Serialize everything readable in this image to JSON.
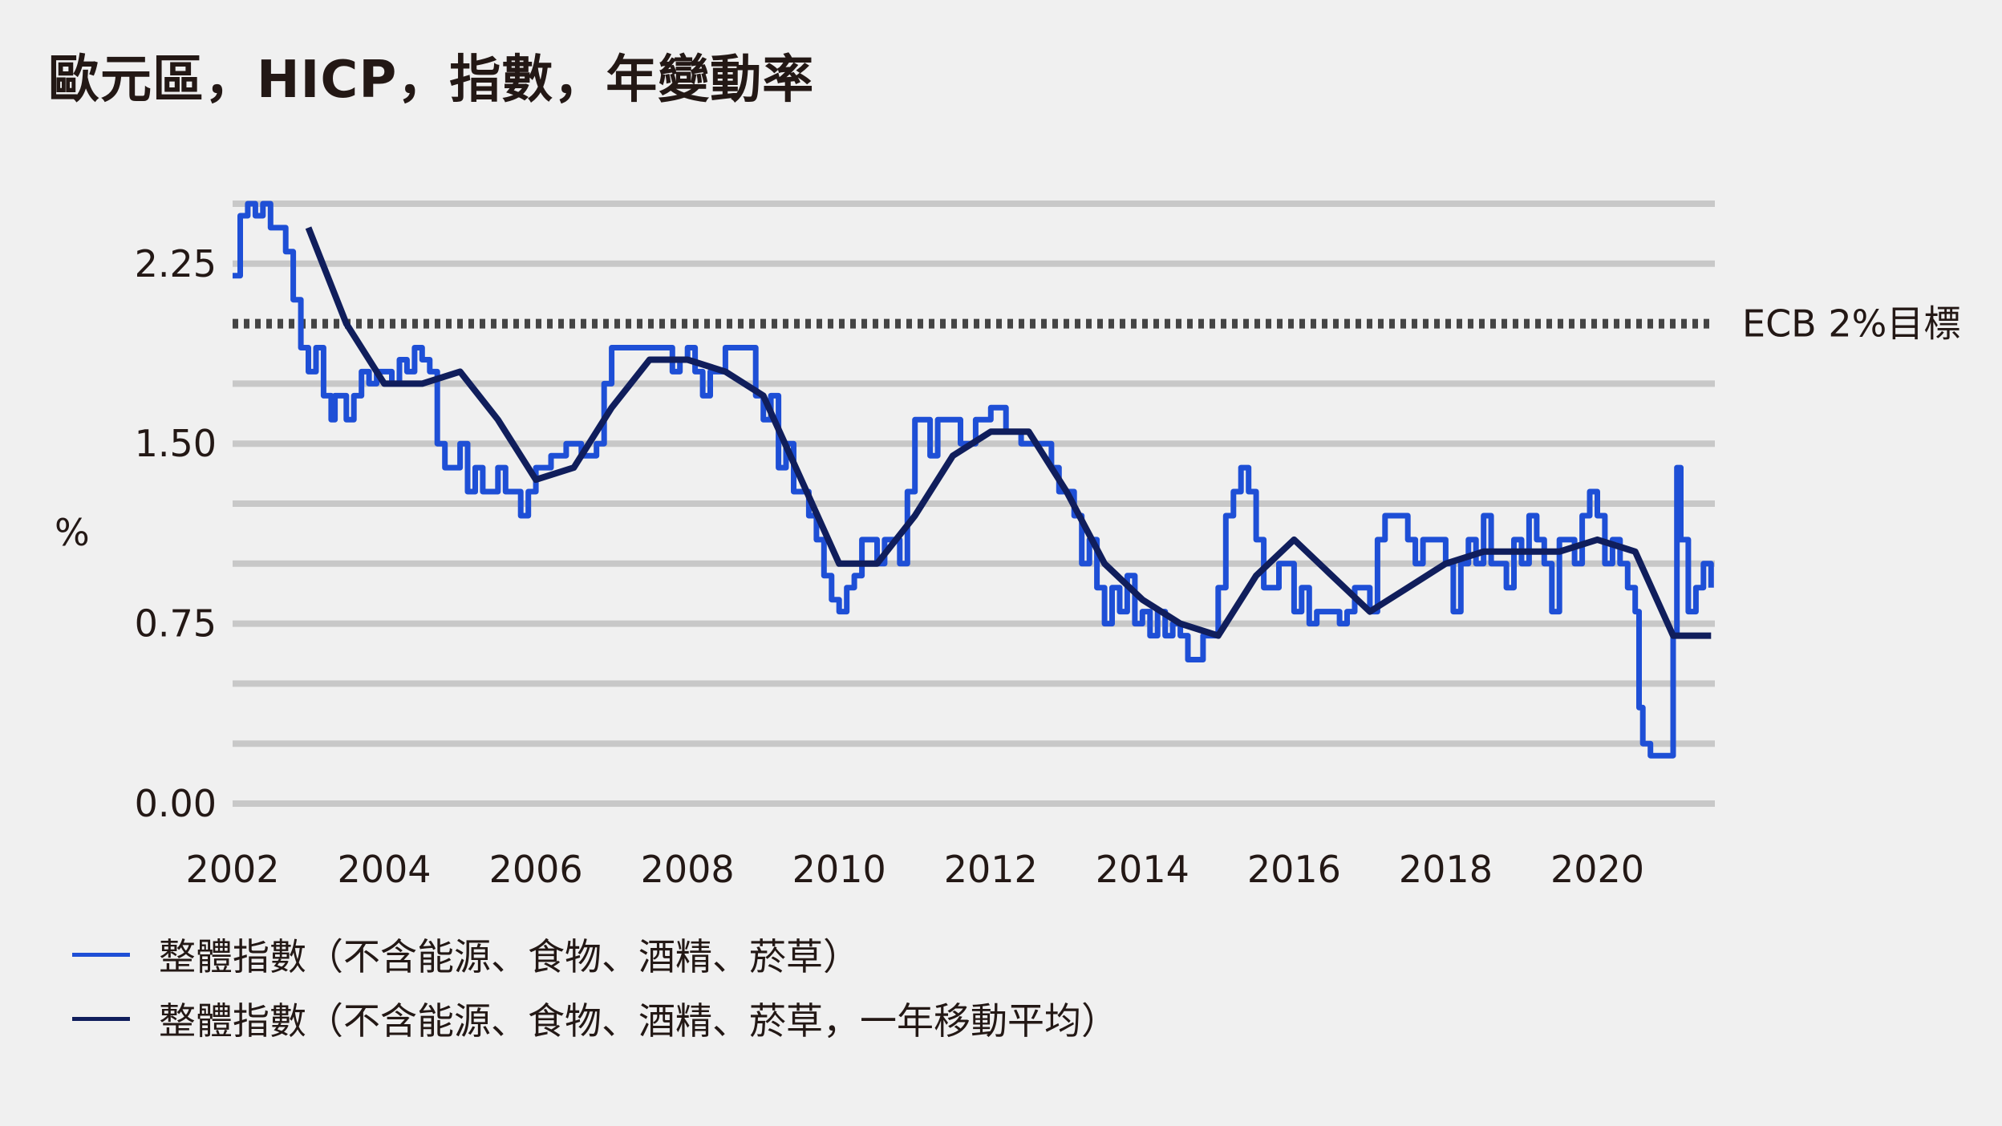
{
  "title": "歐元區，HICP，指數，年變動率",
  "chart_data": {
    "type": "line",
    "title": "歐元區，HICP，指數，年變動率",
    "ylabel": "%",
    "xlabel": "",
    "xlim": [
      2002.0,
      2021.55
    ],
    "ylim": [
      0,
      2.5
    ],
    "yticks": [
      "0.00",
      "0.75",
      "1.50",
      "2.25"
    ],
    "xticks": [
      "2002",
      "2004",
      "2006",
      "2008",
      "2010",
      "2012",
      "2014",
      "2016",
      "2018",
      "2020"
    ],
    "xtick_values": [
      2002,
      2004,
      2006,
      2008,
      2010,
      2012,
      2014,
      2016,
      2018,
      2020
    ],
    "gridlines": [
      0,
      0.25,
      0.5,
      0.75,
      1.0,
      1.25,
      1.5,
      1.75,
      2.25,
      2.5
    ],
    "grid": true,
    "target_line": {
      "value": 2.0,
      "label": "ECB 2%目標",
      "style": "dotted"
    },
    "legend_position": "bottom-left",
    "series": [
      {
        "name": "整體指數（不含能源、食物、酒精、菸草）",
        "color": "#1e4fd6",
        "x": [
          2002.0,
          2002.1,
          2002.2,
          2002.3,
          2002.4,
          2002.5,
          2002.6,
          2002.7,
          2002.8,
          2002.9,
          2003.0,
          2003.1,
          2003.2,
          2003.3,
          2003.35,
          2003.45,
          2003.5,
          2003.6,
          2003.7,
          2003.8,
          2003.9,
          2004.0,
          2004.1,
          2004.2,
          2004.3,
          2004.4,
          2004.5,
          2004.6,
          2004.7,
          2004.8,
          2004.9,
          2005.0,
          2005.1,
          2005.2,
          2005.3,
          2005.4,
          2005.5,
          2005.6,
          2005.7,
          2005.8,
          2005.9,
          2006.0,
          2006.2,
          2006.4,
          2006.6,
          2006.8,
          2006.9,
          2007.0,
          2007.2,
          2007.4,
          2007.6,
          2007.8,
          2007.9,
          2008.0,
          2008.1,
          2008.2,
          2008.3,
          2008.5,
          2008.7,
          2008.9,
          2009.0,
          2009.1,
          2009.2,
          2009.3,
          2009.4,
          2009.5,
          2009.6,
          2009.7,
          2009.8,
          2009.9,
          2010.0,
          2010.1,
          2010.2,
          2010.3,
          2010.4,
          2010.5,
          2010.6,
          2010.7,
          2010.8,
          2010.9,
          2011.0,
          2011.2,
          2011.3,
          2011.4,
          2011.5,
          2011.6,
          2011.8,
          2012.0,
          2012.2,
          2012.4,
          2012.6,
          2012.7,
          2012.8,
          2012.9,
          2013.0,
          2013.1,
          2013.2,
          2013.3,
          2013.4,
          2013.5,
          2013.6,
          2013.7,
          2013.8,
          2013.9,
          2014.0,
          2014.1,
          2014.2,
          2014.3,
          2014.4,
          2014.5,
          2014.6,
          2014.7,
          2014.8,
          2014.9,
          2015.0,
          2015.1,
          2015.2,
          2015.3,
          2015.4,
          2015.5,
          2015.6,
          2015.7,
          2015.8,
          2015.9,
          2016.0,
          2016.1,
          2016.2,
          2016.3,
          2016.4,
          2016.5,
          2016.6,
          2016.7,
          2016.8,
          2016.9,
          2017.0,
          2017.1,
          2017.2,
          2017.3,
          2017.4,
          2017.5,
          2017.6,
          2017.7,
          2017.8,
          2017.9,
          2018.0,
          2018.1,
          2018.2,
          2018.3,
          2018.4,
          2018.5,
          2018.6,
          2018.7,
          2018.8,
          2018.9,
          2019.0,
          2019.1,
          2019.2,
          2019.3,
          2019.4,
          2019.5,
          2019.6,
          2019.7,
          2019.8,
          2019.9,
          2020.0,
          2020.1,
          2020.2,
          2020.3,
          2020.4,
          2020.5,
          2020.55,
          2020.6,
          2020.7,
          2020.8,
          2020.9,
          2020.95,
          2021.0,
          2021.05,
          2021.1,
          2021.2,
          2021.3,
          2021.4,
          2021.5
        ],
        "y": [
          2.2,
          2.45,
          2.5,
          2.45,
          2.5,
          2.4,
          2.4,
          2.3,
          2.1,
          1.9,
          1.8,
          1.9,
          1.7,
          1.6,
          1.7,
          1.7,
          1.6,
          1.7,
          1.8,
          1.75,
          1.8,
          1.8,
          1.75,
          1.85,
          1.8,
          1.9,
          1.85,
          1.8,
          1.5,
          1.4,
          1.4,
          1.5,
          1.3,
          1.4,
          1.3,
          1.3,
          1.4,
          1.3,
          1.3,
          1.2,
          1.3,
          1.4,
          1.45,
          1.5,
          1.45,
          1.5,
          1.75,
          1.9,
          1.9,
          1.9,
          1.9,
          1.8,
          1.85,
          1.9,
          1.8,
          1.7,
          1.8,
          1.9,
          1.9,
          1.7,
          1.6,
          1.7,
          1.4,
          1.5,
          1.3,
          1.3,
          1.2,
          1.1,
          0.95,
          0.85,
          0.8,
          0.9,
          0.95,
          1.1,
          1.1,
          1.0,
          1.1,
          1.1,
          1.0,
          1.3,
          1.6,
          1.45,
          1.6,
          1.6,
          1.6,
          1.5,
          1.6,
          1.65,
          1.55,
          1.5,
          1.5,
          1.5,
          1.4,
          1.3,
          1.3,
          1.2,
          1.0,
          1.1,
          0.9,
          0.75,
          0.9,
          0.8,
          0.95,
          0.75,
          0.8,
          0.7,
          0.8,
          0.7,
          0.75,
          0.7,
          0.6,
          0.6,
          0.7,
          0.7,
          0.9,
          1.2,
          1.3,
          1.4,
          1.3,
          1.1,
          0.9,
          0.9,
          1.0,
          1.0,
          0.8,
          0.9,
          0.75,
          0.8,
          0.8,
          0.8,
          0.75,
          0.8,
          0.9,
          0.9,
          0.8,
          1.1,
          1.2,
          1.2,
          1.2,
          1.1,
          1.0,
          1.1,
          1.1,
          1.1,
          1.0,
          0.8,
          1.0,
          1.1,
          1.0,
          1.2,
          1.0,
          1.0,
          0.9,
          1.1,
          1.0,
          1.2,
          1.1,
          1.0,
          0.8,
          1.1,
          1.1,
          1.0,
          1.2,
          1.3,
          1.2,
          1.0,
          1.1,
          1.0,
          0.9,
          0.8,
          0.4,
          0.25,
          0.2,
          0.2,
          0.2,
          0.2,
          0.7,
          1.4,
          1.1,
          0.8,
          0.9,
          1.0,
          0.9
        ]
      },
      {
        "name": "整體指數（不含能源、食物、酒精、菸草，一年移動平均）",
        "color": "#101e5c",
        "x": [
          2003.0,
          2003.5,
          2004.0,
          2004.5,
          2005.0,
          2005.5,
          2006.0,
          2006.5,
          2007.0,
          2007.5,
          2008.0,
          2008.5,
          2009.0,
          2009.5,
          2010.0,
          2010.5,
          2011.0,
          2011.5,
          2012.0,
          2012.5,
          2013.0,
          2013.5,
          2014.0,
          2014.5,
          2015.0,
          2015.5,
          2016.0,
          2016.5,
          2017.0,
          2017.5,
          2018.0,
          2018.5,
          2019.0,
          2019.5,
          2020.0,
          2020.5,
          2021.0,
          2021.5
        ],
        "y": [
          2.4,
          2.0,
          1.75,
          1.75,
          1.8,
          1.6,
          1.35,
          1.4,
          1.65,
          1.85,
          1.85,
          1.8,
          1.7,
          1.35,
          1.0,
          1.0,
          1.2,
          1.45,
          1.55,
          1.55,
          1.3,
          1.0,
          0.85,
          0.75,
          0.7,
          0.95,
          1.1,
          0.95,
          0.8,
          0.9,
          1.0,
          1.05,
          1.05,
          1.05,
          1.1,
          1.05,
          0.7,
          0.7
        ]
      }
    ]
  }
}
